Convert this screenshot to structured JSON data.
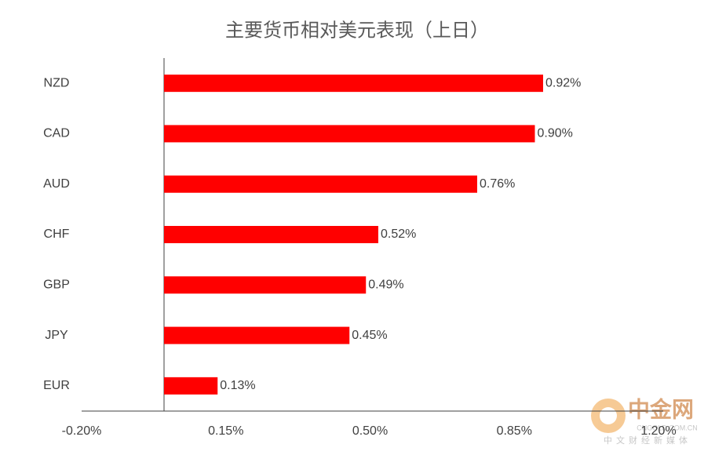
{
  "chart_data": {
    "type": "barh",
    "title": "主要货币相对美元表现（上日）",
    "categories": [
      "NZD",
      "CAD",
      "AUD",
      "CHF",
      "GBP",
      "JPY",
      "EUR"
    ],
    "values": [
      0.92,
      0.9,
      0.76,
      0.52,
      0.49,
      0.45,
      0.13
    ],
    "value_labels": [
      "0.92%",
      "0.90%",
      "0.76%",
      "0.52%",
      "0.49%",
      "0.45%",
      "0.13%"
    ],
    "color": "#ff0000",
    "xlim": [
      -0.2,
      1.2
    ],
    "xticks": [
      {
        "value": -0.2,
        "label": "-0.20%"
      },
      {
        "value": 0.15,
        "label": "0.15%"
      },
      {
        "value": 0.5,
        "label": "0.50%"
      },
      {
        "value": 0.85,
        "label": "0.85%"
      },
      {
        "value": 1.2,
        "label": "1.20%"
      }
    ],
    "grid": false
  },
  "watermark": {
    "name": "中金网",
    "url": "CNGOLD.COM.CN",
    "tagline": "中文财经新媒体"
  }
}
